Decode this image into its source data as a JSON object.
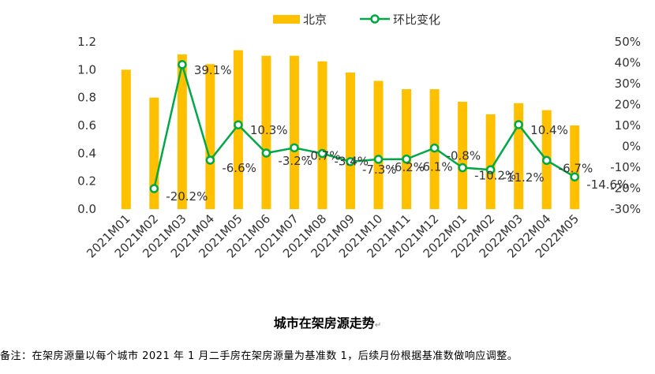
{
  "chart_data": {
    "type": "bar",
    "categories": [
      "2021M01",
      "2021M02",
      "2021M03",
      "2021M04",
      "2021M05",
      "2021M06",
      "2021M07",
      "2021M08",
      "2021M09",
      "2021M10",
      "2021M11",
      "2021M12",
      "2022M01",
      "2022M02",
      "2022M03",
      "2022M04",
      "2022M05"
    ],
    "series": [
      {
        "name": "北京",
        "type": "bar",
        "axis": "left",
        "color": "#FFC000",
        "values": [
          1.0,
          0.8,
          1.11,
          1.04,
          1.14,
          1.1,
          1.1,
          1.06,
          0.98,
          0.92,
          0.86,
          0.86,
          0.77,
          0.68,
          0.76,
          0.71,
          0.6
        ]
      },
      {
        "name": "环比变化",
        "type": "line",
        "axis": "right",
        "color": "#00A846",
        "values": [
          null,
          -20.2,
          39.1,
          -6.6,
          10.3,
          -3.2,
          -0.7,
          -3.4,
          -7.3,
          -6.2,
          -6.1,
          -0.8,
          -10.2,
          -11.2,
          10.4,
          -6.7,
          -14.6
        ],
        "labels": [
          "",
          "-20.2%",
          "39.1%",
          "-6.6%",
          "10.3%",
          "-3.2%",
          "-0.7%",
          "-3.4%",
          "-7.3%",
          "-6.2%",
          "-6.1%",
          "-0.8%",
          "-10.2%",
          "-11.2%",
          "10.4%",
          "-6.7%",
          "-14.6%"
        ]
      }
    ],
    "y_left": {
      "min": 0,
      "max": 1.2,
      "step": 0.2,
      "ticks": [
        "0.0",
        "0.2",
        "0.4",
        "0.6",
        "0.8",
        "1.0",
        "1.2"
      ]
    },
    "y_right": {
      "min": -30,
      "max": 50,
      "step": 10,
      "ticks": [
        "-30%",
        "-20%",
        "-10%",
        "0%",
        "10%",
        "20%",
        "30%",
        "40%",
        "50%"
      ]
    },
    "legend_position": "top",
    "grid": false
  },
  "caption": "城市在架房源走势",
  "caption_mark": "↵",
  "note": "备注：在架房源量以每个城市 2021 年 1 月二手房在架房源量为基准数 1，后续月份根据基准数做响应调整。"
}
